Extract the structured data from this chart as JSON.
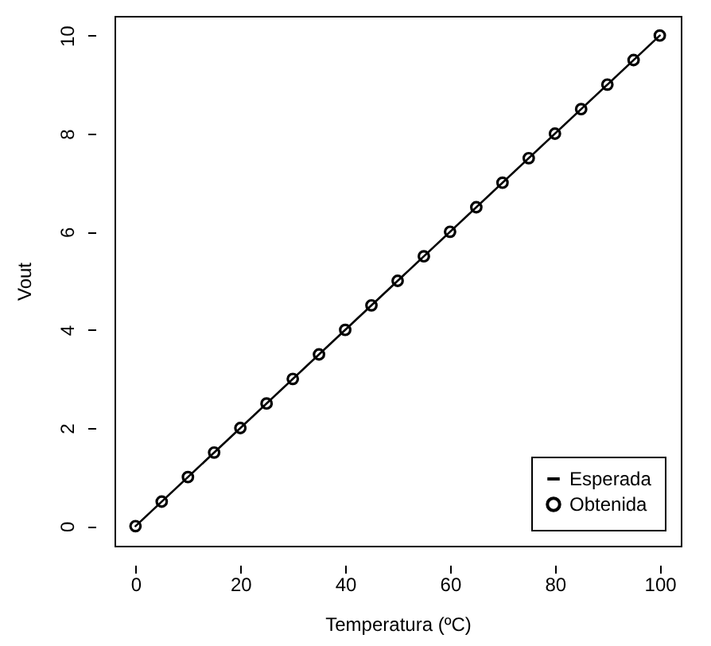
{
  "chart_data": {
    "type": "scatter",
    "xlabel": "Temperatura (ºC)",
    "ylabel": "Vout",
    "xlim": [
      -4,
      104
    ],
    "ylim": [
      -0.4,
      10.4
    ],
    "xticks": [
      0,
      20,
      40,
      60,
      80,
      100
    ],
    "yticks": [
      0,
      2,
      4,
      6,
      8,
      10
    ],
    "legend": "bottom right",
    "grid": false,
    "series": [
      {
        "name": "Esperada",
        "type": "line",
        "color": "#000000",
        "x": [
          0,
          100
        ],
        "values": [
          0,
          10
        ]
      },
      {
        "name": "Obtenida",
        "marker": "circle",
        "color": "#000000",
        "x": [
          0,
          5,
          10,
          15,
          20,
          25,
          30,
          35,
          40,
          45,
          50,
          55,
          60,
          65,
          70,
          75,
          80,
          85,
          90,
          95,
          100
        ],
        "values": [
          0,
          0.5,
          1,
          1.5,
          2,
          2.5,
          3,
          3.5,
          4,
          4.5,
          5,
          5.5,
          6,
          6.5,
          7,
          7.5,
          8,
          8.5,
          9,
          9.5,
          10
        ]
      }
    ]
  }
}
